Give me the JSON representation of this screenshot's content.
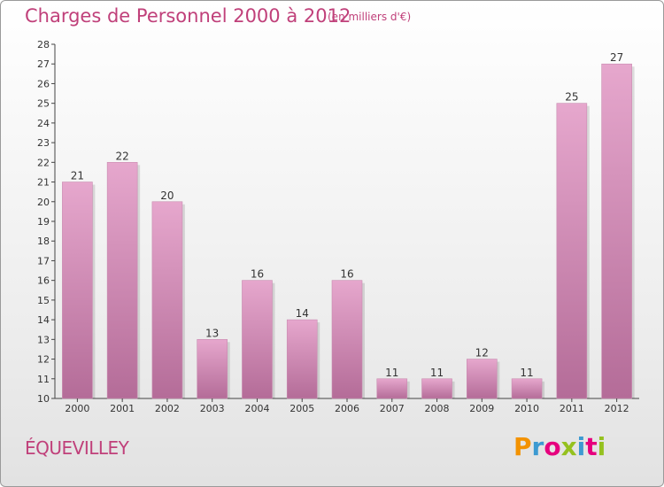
{
  "header": {
    "title": "Charges de Personnel 2000 à 2012",
    "subtitle": "(en milliers d'€)"
  },
  "footer": {
    "commune": "ÉQUEVILLEY",
    "logo_text": "Proxiti"
  },
  "colors": {
    "title": "#c0407a",
    "bar_light": "#e6a7cd",
    "bar_dark": "#b46c98",
    "logo": [
      "#f39200",
      "#3d9ad1",
      "#e6007e",
      "#95c11f",
      "#3d9ad1",
      "#e6007e",
      "#95c11f"
    ]
  },
  "chart_data": {
    "type": "bar",
    "title": "Charges de Personnel 2000 à 2012",
    "subtitle": "(en milliers d'€)",
    "categories": [
      "2000",
      "2001",
      "2002",
      "2003",
      "2004",
      "2005",
      "2006",
      "2007",
      "2008",
      "2009",
      "2010",
      "2011",
      "2012"
    ],
    "values": [
      21,
      22,
      20,
      13,
      16,
      14,
      16,
      11,
      11,
      12,
      11,
      25,
      27
    ],
    "ylim": [
      10,
      28
    ],
    "yticks": [
      10,
      11,
      12,
      13,
      14,
      15,
      16,
      17,
      18,
      19,
      20,
      21,
      22,
      23,
      24,
      25,
      26,
      27,
      28
    ],
    "grid": false,
    "data_labels": true
  }
}
